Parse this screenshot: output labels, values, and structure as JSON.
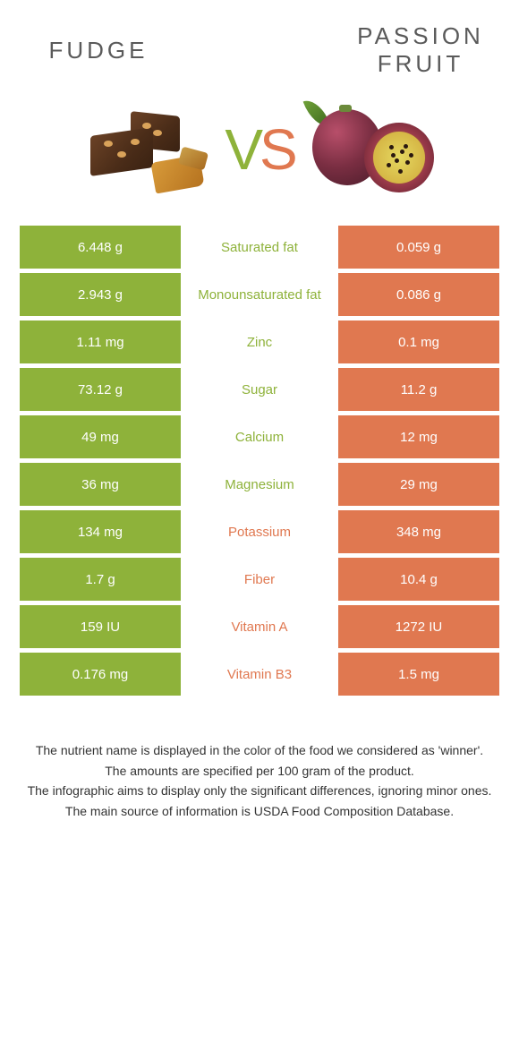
{
  "header": {
    "left_title": "FUDGE",
    "right_title": "PASSION FRUIT",
    "vs_v": "V",
    "vs_s": "S"
  },
  "colors": {
    "green": "#8eb23a",
    "orange": "#e07850",
    "text": "#333333",
    "white": "#ffffff"
  },
  "rows": [
    {
      "left": "6.448 g",
      "label": "Saturated fat",
      "right": "0.059 g",
      "winner": "left"
    },
    {
      "left": "2.943 g",
      "label": "Monounsaturated fat",
      "right": "0.086 g",
      "winner": "left"
    },
    {
      "left": "1.11 mg",
      "label": "Zinc",
      "right": "0.1 mg",
      "winner": "left"
    },
    {
      "left": "73.12 g",
      "label": "Sugar",
      "right": "11.2 g",
      "winner": "left"
    },
    {
      "left": "49 mg",
      "label": "Calcium",
      "right": "12 mg",
      "winner": "left"
    },
    {
      "left": "36 mg",
      "label": "Magnesium",
      "right": "29 mg",
      "winner": "left"
    },
    {
      "left": "134 mg",
      "label": "Potassium",
      "right": "348 mg",
      "winner": "right"
    },
    {
      "left": "1.7 g",
      "label": "Fiber",
      "right": "10.4 g",
      "winner": "right"
    },
    {
      "left": "159 IU",
      "label": "Vitamin A",
      "right": "1272 IU",
      "winner": "right"
    },
    {
      "left": "0.176 mg",
      "label": "Vitamin B3",
      "right": "1.5 mg",
      "winner": "right"
    }
  ],
  "footer": {
    "line1": "The nutrient name is displayed in the color of the food we considered as 'winner'.",
    "line2": "The amounts are specified per 100 gram of the product.",
    "line3": "The infographic aims to display only the significant differences, ignoring minor ones.",
    "line4": "The main source of information is USDA Food Composition Database."
  }
}
